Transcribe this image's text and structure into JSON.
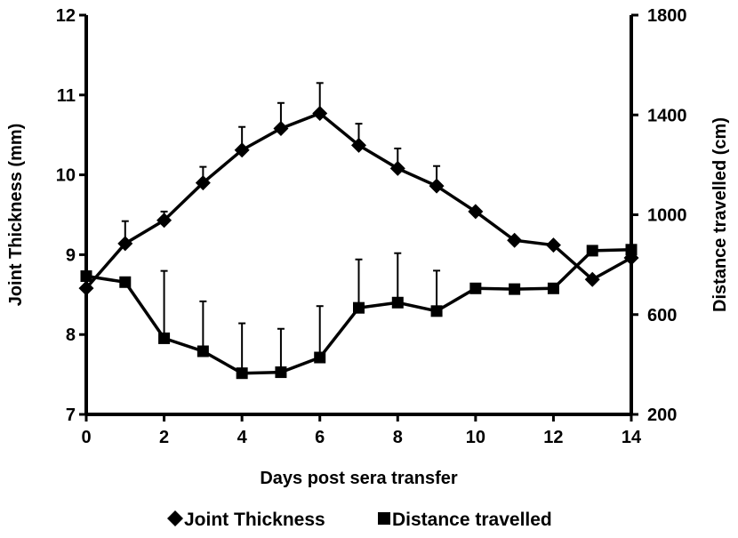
{
  "chart_data": {
    "type": "line",
    "x": [
      0,
      1,
      2,
      3,
      4,
      5,
      6,
      7,
      8,
      9,
      10,
      11,
      12,
      13,
      14
    ],
    "xlim": [
      0,
      14
    ],
    "xticks": [
      0,
      2,
      4,
      6,
      8,
      10,
      12,
      14
    ],
    "xlabel": "Days post sera transfer",
    "ylabel": "Joint Thickness  (mm)",
    "ylim": [
      7,
      12
    ],
    "yticks": [
      7,
      8,
      9,
      10,
      11,
      12
    ],
    "y2label": "Distance travelled (cm)",
    "y2lim": [
      200,
      1800
    ],
    "y2ticks": [
      200,
      600,
      1000,
      1400,
      1800
    ],
    "grid": false,
    "legend_position": "bottom",
    "series": [
      {
        "name": "Joint Thickness",
        "axis": "left",
        "marker": "diamond",
        "color": "#000000",
        "values": [
          8.58,
          9.14,
          9.43,
          9.9,
          10.31,
          10.58,
          10.77,
          10.37,
          10.08,
          9.86,
          9.54,
          9.18,
          9.12,
          8.69,
          8.96
        ],
        "error_up": [
          0.0,
          0.28,
          0.11,
          0.2,
          0.29,
          0.32,
          0.38,
          0.27,
          0.25,
          0.25,
          0.0,
          0.0,
          0.0,
          0.0,
          0.0
        ]
      },
      {
        "name": "Distance travelled",
        "axis": "right",
        "marker": "square",
        "color": "#000000",
        "values": [
          754,
          730,
          505,
          453,
          365,
          369,
          428,
          627,
          648,
          614,
          705,
          702,
          705,
          856,
          860
        ],
        "error_up": [
          0,
          0,
          270,
          200,
          200,
          174,
          206,
          194,
          198,
          162,
          0,
          0,
          0,
          0,
          0
        ]
      }
    ]
  }
}
